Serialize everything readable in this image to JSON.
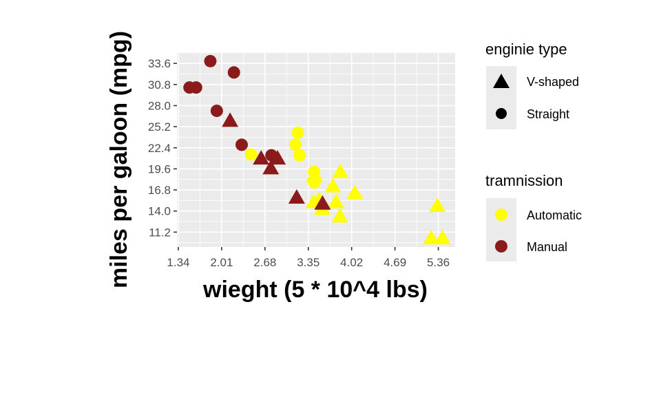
{
  "chart_data": {
    "type": "scatter",
    "xlabel": "wieght (5 * 10^4 lbs)",
    "ylabel": "miles per galoon (mpg)",
    "xlim": [
      1.319,
      5.62
    ],
    "ylim": [
      9.225,
      35.075
    ],
    "xticks": [
      "1.34",
      "2.01",
      "2.68",
      "3.35",
      "4.02",
      "4.69",
      "5.36"
    ],
    "yticks": [
      "11.2",
      "14.0",
      "16.8",
      "19.6",
      "22.4",
      "25.2",
      "28.0",
      "30.8",
      "33.6"
    ],
    "grid": true,
    "legend_position": "right",
    "legends": [
      {
        "title": "enginie type",
        "kind": "shape",
        "entries": [
          {
            "label": "V-shaped",
            "shape": "triangle"
          },
          {
            "label": "Straight",
            "shape": "circle"
          }
        ]
      },
      {
        "title": "tramnission",
        "kind": "color",
        "entries": [
          {
            "label": "Automatic",
            "color": "#FFFF00"
          },
          {
            "label": "Manual",
            "color": "#8B1A1A"
          }
        ]
      }
    ],
    "colors": {
      "Automatic": "#FFFF00",
      "Manual": "#8B1A1A"
    },
    "points": [
      {
        "x": 2.62,
        "y": 21.0,
        "engine": "V-shaped",
        "trans": "Manual"
      },
      {
        "x": 2.875,
        "y": 21.0,
        "engine": "V-shaped",
        "trans": "Manual"
      },
      {
        "x": 2.32,
        "y": 22.8,
        "engine": "Straight",
        "trans": "Manual"
      },
      {
        "x": 3.215,
        "y": 21.4,
        "engine": "Straight",
        "trans": "Automatic"
      },
      {
        "x": 3.44,
        "y": 18.7,
        "engine": "V-shaped",
        "trans": "Automatic"
      },
      {
        "x": 3.46,
        "y": 18.1,
        "engine": "Straight",
        "trans": "Automatic"
      },
      {
        "x": 3.57,
        "y": 14.3,
        "engine": "V-shaped",
        "trans": "Automatic"
      },
      {
        "x": 3.19,
        "y": 24.4,
        "engine": "Straight",
        "trans": "Automatic"
      },
      {
        "x": 3.15,
        "y": 22.8,
        "engine": "Straight",
        "trans": "Automatic"
      },
      {
        "x": 3.44,
        "y": 19.2,
        "engine": "Straight",
        "trans": "Automatic"
      },
      {
        "x": 3.44,
        "y": 17.8,
        "engine": "Straight",
        "trans": "Automatic"
      },
      {
        "x": 4.07,
        "y": 16.4,
        "engine": "V-shaped",
        "trans": "Automatic"
      },
      {
        "x": 3.73,
        "y": 17.3,
        "engine": "V-shaped",
        "trans": "Automatic"
      },
      {
        "x": 3.78,
        "y": 15.2,
        "engine": "V-shaped",
        "trans": "Automatic"
      },
      {
        "x": 5.25,
        "y": 10.4,
        "engine": "V-shaped",
        "trans": "Automatic"
      },
      {
        "x": 5.424,
        "y": 10.4,
        "engine": "V-shaped",
        "trans": "Automatic"
      },
      {
        "x": 5.345,
        "y": 14.7,
        "engine": "V-shaped",
        "trans": "Automatic"
      },
      {
        "x": 2.2,
        "y": 32.4,
        "engine": "Straight",
        "trans": "Manual"
      },
      {
        "x": 1.615,
        "y": 30.4,
        "engine": "Straight",
        "trans": "Manual"
      },
      {
        "x": 1.835,
        "y": 33.9,
        "engine": "Straight",
        "trans": "Manual"
      },
      {
        "x": 2.465,
        "y": 21.5,
        "engine": "Straight",
        "trans": "Automatic"
      },
      {
        "x": 3.52,
        "y": 15.5,
        "engine": "V-shaped",
        "trans": "Automatic"
      },
      {
        "x": 3.435,
        "y": 15.2,
        "engine": "V-shaped",
        "trans": "Automatic"
      },
      {
        "x": 3.84,
        "y": 13.3,
        "engine": "V-shaped",
        "trans": "Automatic"
      },
      {
        "x": 3.845,
        "y": 19.2,
        "engine": "V-shaped",
        "trans": "Automatic"
      },
      {
        "x": 1.935,
        "y": 27.3,
        "engine": "Straight",
        "trans": "Manual"
      },
      {
        "x": 2.14,
        "y": 26.0,
        "engine": "V-shaped",
        "trans": "Manual"
      },
      {
        "x": 1.513,
        "y": 30.4,
        "engine": "Straight",
        "trans": "Manual"
      },
      {
        "x": 3.17,
        "y": 15.8,
        "engine": "V-shaped",
        "trans": "Manual"
      },
      {
        "x": 2.77,
        "y": 19.7,
        "engine": "V-shaped",
        "trans": "Manual"
      },
      {
        "x": 3.57,
        "y": 15.0,
        "engine": "V-shaped",
        "trans": "Manual"
      },
      {
        "x": 2.78,
        "y": 21.4,
        "engine": "Straight",
        "trans": "Manual"
      }
    ]
  }
}
